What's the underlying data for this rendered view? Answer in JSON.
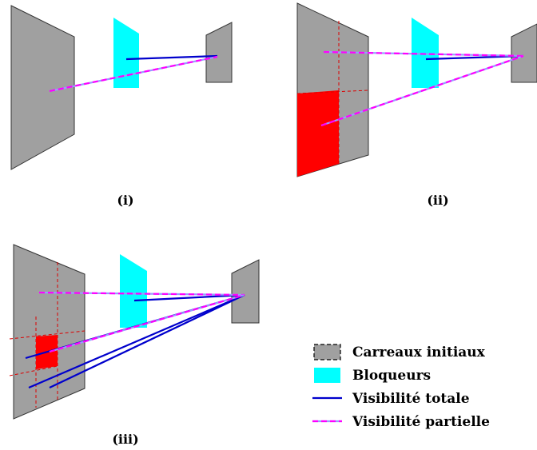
{
  "panels": [
    {
      "caption": "(i)"
    },
    {
      "caption": "(ii)"
    },
    {
      "caption": "(iii)"
    }
  ],
  "legend": {
    "initial_tiles": "Carreaux initiaux",
    "blockers": "Bloqueurs",
    "total_visibility": "Visibilité totale",
    "partial_visibility": "Visibilité partielle"
  },
  "colors": {
    "tile_fill": "#a0a0a0",
    "blocker": "#00ffff",
    "highlight": "#ff0000",
    "total_visibility": "#0000cc",
    "partial_visibility_dash": "#ff00ff",
    "partial_visibility_base": "#9a9aff",
    "subdivision_line": "#dd0000"
  }
}
